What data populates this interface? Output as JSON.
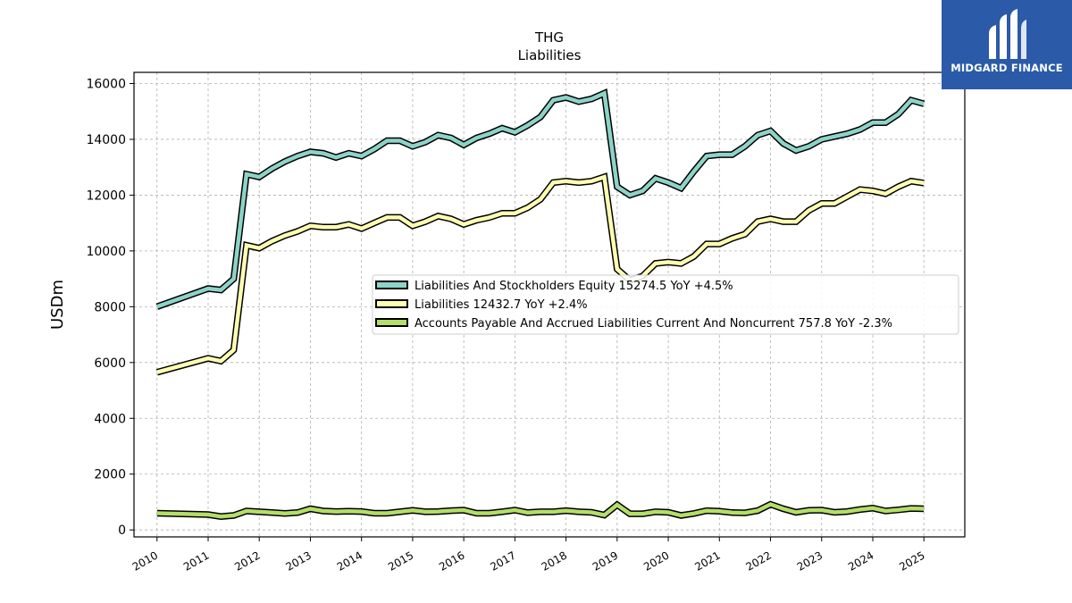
{
  "chart_data": {
    "type": "line",
    "title": "THG",
    "subtitle": "Liabilities",
    "xlabel": "",
    "ylabel": "USDm",
    "xlim": [
      2009.55,
      2025.8
    ],
    "ylim": [
      -250,
      16400
    ],
    "yticks": [
      0,
      2000,
      4000,
      6000,
      8000,
      10000,
      12000,
      14000,
      16000
    ],
    "ytick_labels": [
      "0",
      "2000",
      "4000",
      "6000",
      "8000",
      "10000",
      "12000",
      "14000",
      "16000"
    ],
    "xticks": [
      2010,
      2011,
      2012,
      2013,
      2014,
      2015,
      2016,
      2017,
      2018,
      2019,
      2020,
      2021,
      2022,
      2023,
      2024,
      2025
    ],
    "xtick_labels": [
      "2010",
      "2011",
      "2012",
      "2013",
      "2014",
      "2015",
      "2016",
      "2017",
      "2018",
      "2019",
      "2020",
      "2021",
      "2022",
      "2023",
      "2024",
      "2025"
    ],
    "grid": true,
    "legend_position": "center-right",
    "x": [
      2010.0,
      2011.0,
      2011.25,
      2011.5,
      2011.75,
      2012.0,
      2012.25,
      2012.5,
      2012.75,
      2013.0,
      2013.25,
      2013.5,
      2013.75,
      2014.0,
      2014.25,
      2014.5,
      2014.75,
      2015.0,
      2015.25,
      2015.5,
      2015.75,
      2016.0,
      2016.25,
      2016.5,
      2016.75,
      2017.0,
      2017.25,
      2017.5,
      2017.75,
      2018.0,
      2018.25,
      2018.5,
      2018.75,
      2019.0,
      2019.25,
      2019.5,
      2019.75,
      2020.0,
      2020.25,
      2020.5,
      2020.75,
      2021.0,
      2021.25,
      2021.5,
      2021.75,
      2022.0,
      2022.25,
      2022.5,
      2022.75,
      2023.0,
      2023.25,
      2023.5,
      2023.75,
      2024.0,
      2024.25,
      2024.5,
      2024.75,
      2025.0
    ],
    "series": [
      {
        "name": "Liabilities And Stockholders Equity  15274.5 YoY +4.5%",
        "color": "#8dd3c7",
        "values": [
          8000,
          8650,
          8600,
          9000,
          12750,
          12650,
          12950,
          13200,
          13400,
          13550,
          13500,
          13350,
          13500,
          13400,
          13650,
          13950,
          13950,
          13750,
          13900,
          14150,
          14050,
          13800,
          14050,
          14200,
          14400,
          14250,
          14500,
          14800,
          15400,
          15500,
          15350,
          15450,
          15650,
          12300,
          12000,
          12150,
          12600,
          12450,
          12250,
          12850,
          13400,
          13450,
          13450,
          13750,
          14150,
          14300,
          13850,
          13600,
          13750,
          14000,
          14100,
          14200,
          14350,
          14600,
          14600,
          14900,
          15400,
          15274.5
        ]
      },
      {
        "name": "Liabilities  12432.7 YoY +2.4%",
        "color": "#ffffb3",
        "values": [
          5650,
          6150,
          6050,
          6450,
          10200,
          10100,
          10350,
          10550,
          10700,
          10900,
          10850,
          10850,
          10950,
          10800,
          11000,
          11200,
          11200,
          10900,
          11050,
          11250,
          11150,
          10950,
          11100,
          11200,
          11350,
          11350,
          11550,
          11850,
          12450,
          12500,
          12450,
          12500,
          12650,
          9350,
          8950,
          9100,
          9550,
          9600,
          9550,
          9800,
          10250,
          10250,
          10450,
          10600,
          11050,
          11150,
          11050,
          11050,
          11450,
          11700,
          11700,
          11950,
          12200,
          12150,
          12050,
          12300,
          12500,
          12432.7
        ]
      },
      {
        "name": "Accounts Payable And Accrued Liabilities Current And Noncurrent  757.8 YoY -2.3%",
        "color": "#b3de69",
        "values": [
          600,
          550,
          480,
          520,
          680,
          650,
          620,
          590,
          620,
          760,
          680,
          660,
          670,
          660,
          600,
          600,
          650,
          700,
          650,
          660,
          690,
          710,
          600,
          600,
          650,
          710,
          620,
          650,
          650,
          690,
          650,
          630,
          530,
          900,
          580,
          580,
          650,
          630,
          520,
          590,
          690,
          670,
          620,
          610,
          690,
          920,
          760,
          630,
          700,
          710,
          630,
          660,
          730,
          780,
          680,
          720,
          770,
          757.8
        ]
      }
    ]
  },
  "watermark": {
    "brand": "MIDGARD FINANCE",
    "background": "#2b5aa8"
  }
}
